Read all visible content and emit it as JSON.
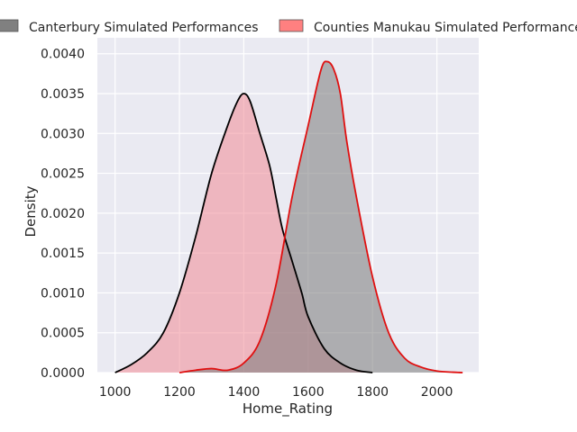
{
  "chart_data": {
    "type": "area",
    "title": "",
    "xlabel": "Home_Rating",
    "ylabel": "Density",
    "xlim": [
      945,
      2130
    ],
    "ylim": [
      0,
      0.0042
    ],
    "xticks": [
      1000,
      1200,
      1400,
      1600,
      1800,
      2000
    ],
    "yticks": [
      0.0,
      0.0005,
      0.001,
      0.0015,
      0.002,
      0.0025,
      0.003,
      0.0035,
      0.004
    ],
    "ytick_labels": [
      "0.0000",
      "0.0005",
      "0.0010",
      "0.0015",
      "0.0020",
      "0.0025",
      "0.0030",
      "0.0035",
      "0.0040"
    ],
    "grid": true,
    "legend_position": "top",
    "series": [
      {
        "name": "Canterbury Simulated Performances",
        "fill": "#f08a96",
        "line": "#000000",
        "legend_color": "#808080",
        "x": [
          1000,
          1050,
          1100,
          1150,
          1200,
          1250,
          1300,
          1350,
          1380,
          1400,
          1420,
          1450,
          1480,
          1500,
          1520,
          1550,
          1580,
          1600,
          1650,
          1700,
          1750,
          1800
        ],
        "values": [
          0.0,
          0.0001,
          0.00025,
          0.0005,
          0.001,
          0.0017,
          0.0025,
          0.0031,
          0.0034,
          0.0035,
          0.0034,
          0.003,
          0.0026,
          0.0022,
          0.0018,
          0.0014,
          0.001,
          0.0007,
          0.0003,
          0.00012,
          3e-05,
          0.0
        ]
      },
      {
        "name": "Counties Manukau Simulated Performances",
        "fill": "#7a7a7a",
        "line": "#e01010",
        "legend_color": "#ff8080",
        "x": [
          1200,
          1250,
          1300,
          1350,
          1400,
          1450,
          1500,
          1550,
          1600,
          1640,
          1660,
          1680,
          1700,
          1720,
          1750,
          1800,
          1850,
          1900,
          1950,
          2000,
          2050,
          2080
        ],
        "values": [
          0.0,
          3e-05,
          5e-05,
          3e-05,
          0.00012,
          0.0004,
          0.0011,
          0.0022,
          0.0031,
          0.0038,
          0.0039,
          0.0038,
          0.0035,
          0.0029,
          0.0022,
          0.0012,
          0.0005,
          0.00018,
          7e-05,
          2e-05,
          5e-06,
          0.0
        ]
      }
    ]
  }
}
